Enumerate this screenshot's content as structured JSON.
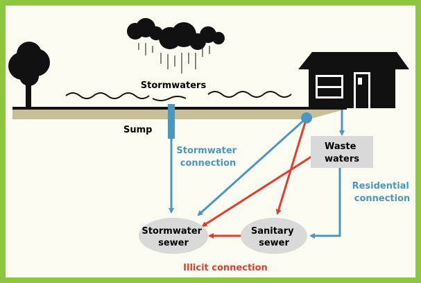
{
  "labels": {
    "stormwaters": "Stormwaters",
    "sump": "Sump",
    "stormwater_connection": [
      "Stormwater",
      "connection"
    ],
    "waste_waters": [
      "Waste",
      "waters"
    ],
    "residential_connection": [
      "Residential",
      "connection"
    ],
    "stormwater_sewer": [
      "Stormwater",
      "sewer"
    ],
    "sanitary_sewer": [
      "Sanitary",
      "sewer"
    ],
    "illicit_connection": "Illicit connection"
  }
}
